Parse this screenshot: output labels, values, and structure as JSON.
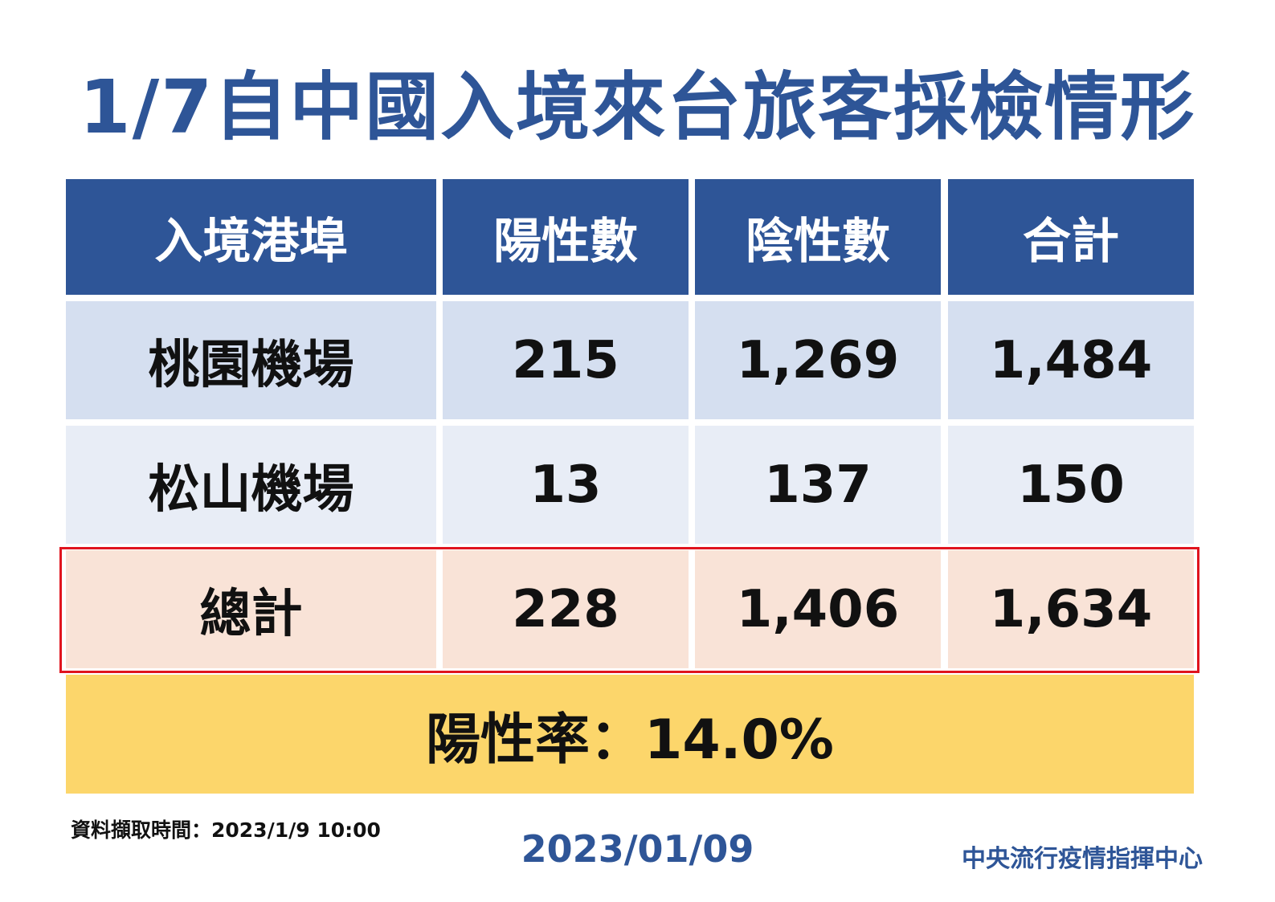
{
  "title": "1/7自中國入境來台旅客採檢情形",
  "table": {
    "headers": [
      "入境港埠",
      "陽性數",
      "陰性數",
      "合計"
    ],
    "rows": [
      {
        "port": "桃園機場",
        "positive": "215",
        "negative": "1,269",
        "total": "1,484"
      },
      {
        "port": "松山機場",
        "positive": "13",
        "negative": "137",
        "total": "150"
      }
    ],
    "total_row": {
      "port": "總計",
      "positive": "228",
      "negative": "1,406",
      "total": "1,634"
    }
  },
  "positivity_rate": "陽性率：14.0%",
  "footer": {
    "data_time": "資料擷取時間：2023/1/9 10:00",
    "date": "2023/01/09",
    "organization": "中央流行疫情指揮中心"
  },
  "colors": {
    "header_blue": "#2e5597",
    "row1_bg": "#d5dff0",
    "row2_bg": "#e8edf6",
    "total_bg": "#f9e3d7",
    "total_outline": "#e0141e",
    "rate_bg": "#fcd66b"
  }
}
